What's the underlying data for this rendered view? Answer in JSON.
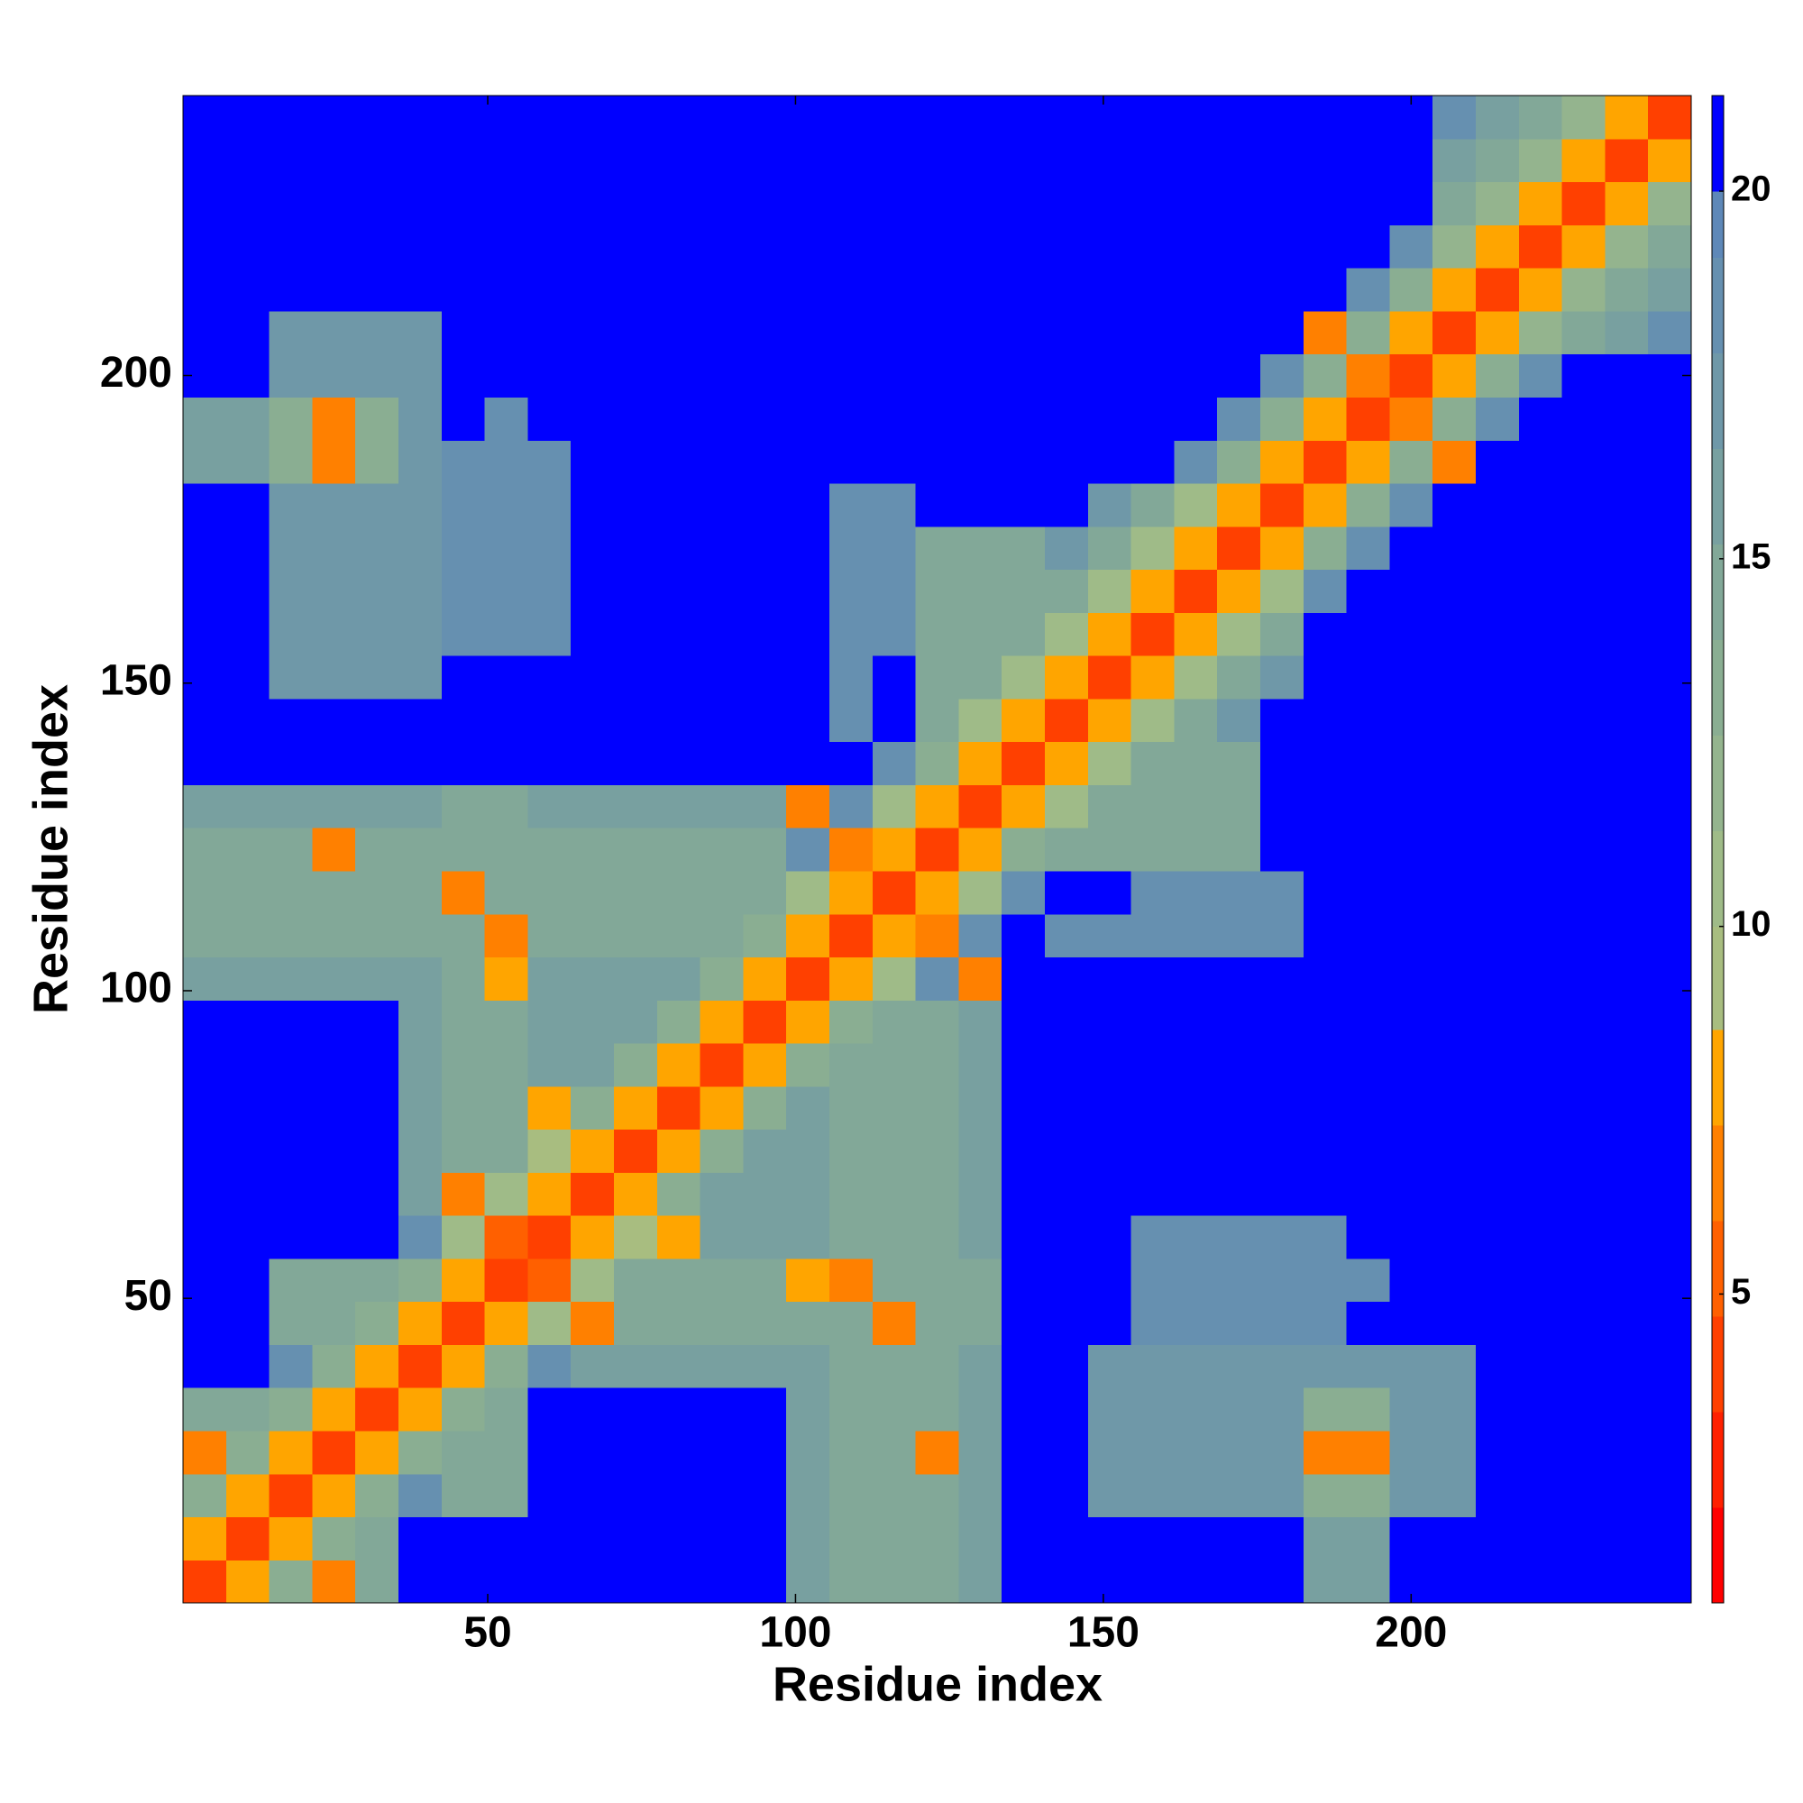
{
  "chart_data": {
    "type": "heatmap",
    "xlabel": "Residue index",
    "ylabel": "Residue index",
    "xlim": [
      0.5,
      245.5
    ],
    "ylim": [
      0.5,
      245.5
    ],
    "xticks": [
      50,
      100,
      150,
      200
    ],
    "yticks": [
      50,
      100,
      150,
      200
    ],
    "xbins": [
      0.5,
      7.5,
      14.5,
      21.5,
      28.5,
      35.5,
      42.5,
      49.5,
      56.5,
      63.5,
      70.5,
      77.5,
      84.5,
      91.5,
      98.5,
      105.5,
      112.5,
      119.5,
      126.5,
      133.5,
      140.5,
      147.5,
      154.5,
      161.5,
      168.5,
      175.5,
      182.5,
      189.5,
      196.5,
      203.5,
      210.5,
      217.5,
      224.5,
      231.5,
      238.5,
      245.5
    ],
    "ybins": [
      0.5,
      7.5,
      14.5,
      21.5,
      28.5,
      35.5,
      42.5,
      49.5,
      56.5,
      63.5,
      70.5,
      77.5,
      84.5,
      91.5,
      98.5,
      105.5,
      112.5,
      119.5,
      126.5,
      133.5,
      140.5,
      147.5,
      154.5,
      161.5,
      168.5,
      175.5,
      182.5,
      189.5,
      196.5,
      203.5,
      210.5,
      217.5,
      224.5,
      231.5,
      238.5,
      245.5
    ],
    "clim": [
      0.8,
      21.3
    ],
    "cticks": [
      5,
      10,
      15,
      20
    ],
    "color_levels": [
      0.8,
      2.1,
      3.4,
      4.7,
      6,
      7.3,
      8.6,
      10,
      11.3,
      12.6,
      13.9,
      15.2,
      16.5,
      17.8,
      19.1,
      20,
      21.3
    ],
    "colors": [
      "#ff0000",
      "#ff2000",
      "#ff4000",
      "#ff6000",
      "#ff8000",
      "#ffa500",
      "#a8bd80",
      "#9fbb88",
      "#94b48e",
      "#8aae92",
      "#82a898",
      "#78a0a0",
      "#6f98a8",
      "#6690b0",
      "#5e88b8",
      "#0000ff"
    ],
    "z": [
      [
        4,
        8,
        13,
        7,
        15,
        21,
        21,
        21,
        21,
        21,
        21,
        21,
        21,
        21,
        16,
        15,
        15,
        15,
        16,
        21,
        21,
        21,
        21,
        21,
        21,
        21,
        16,
        16,
        21,
        21,
        21,
        21,
        21,
        21,
        21
      ],
      [
        8,
        4,
        8,
        13,
        15,
        21,
        21,
        21,
        21,
        21,
        21,
        21,
        21,
        21,
        16,
        15,
        15,
        15,
        16,
        21,
        21,
        21,
        21,
        21,
        21,
        21,
        16,
        16,
        21,
        21,
        21,
        21,
        21,
        21,
        21
      ],
      [
        13,
        8,
        4,
        8,
        13,
        18,
        15,
        15,
        21,
        21,
        21,
        21,
        21,
        21,
        16,
        15,
        15,
        15,
        16,
        21,
        21,
        17,
        17,
        17,
        17,
        17,
        13,
        13,
        17,
        17,
        21,
        21,
        21,
        21,
        21
      ],
      [
        7,
        13,
        8,
        4,
        8,
        13,
        15,
        15,
        21,
        21,
        21,
        21,
        21,
        21,
        16,
        15,
        15,
        6,
        16,
        21,
        21,
        17,
        17,
        17,
        17,
        17,
        6,
        7,
        17,
        17,
        21,
        21,
        21,
        21,
        21
      ],
      [
        15,
        15,
        13,
        8,
        4,
        8,
        13,
        15,
        21,
        21,
        21,
        21,
        21,
        21,
        16,
        15,
        15,
        15,
        16,
        21,
        21,
        17,
        17,
        17,
        17,
        17,
        13,
        13,
        17,
        17,
        21,
        21,
        21,
        21,
        21
      ],
      [
        21,
        21,
        18,
        13,
        8,
        4,
        8,
        13,
        18,
        16,
        16,
        16,
        16,
        16,
        16,
        15,
        15,
        15,
        16,
        21,
        21,
        17,
        17,
        17,
        17,
        17,
        17,
        17,
        17,
        17,
        21,
        21,
        21,
        21,
        21
      ],
      [
        21,
        21,
        15,
        15,
        13,
        8,
        4,
        8,
        10,
        6,
        15,
        15,
        15,
        15,
        14,
        14,
        7,
        14,
        14,
        21,
        21,
        21,
        19,
        19,
        19,
        19,
        19,
        21,
        21,
        21,
        21,
        21,
        21,
        21,
        21
      ],
      [
        21,
        21,
        15,
        15,
        15,
        13,
        8,
        4,
        5,
        10,
        15,
        15,
        15,
        15,
        8,
        6,
        14,
        14,
        14,
        21,
        21,
        21,
        19,
        19,
        19,
        19,
        19,
        19,
        21,
        21,
        21,
        21,
        21,
        21,
        21
      ],
      [
        21,
        21,
        21,
        21,
        21,
        18,
        10,
        5,
        4,
        8,
        9,
        8,
        16,
        16,
        16,
        15,
        15,
        15,
        16,
        21,
        21,
        21,
        19,
        19,
        19,
        19,
        19,
        21,
        21,
        21,
        21,
        21,
        21,
        21,
        21
      ],
      [
        21,
        21,
        21,
        21,
        21,
        16,
        6,
        10,
        8,
        4,
        8,
        13,
        16,
        16,
        16,
        15,
        15,
        15,
        16,
        21,
        21,
        21,
        21,
        21,
        21,
        21,
        21,
        21,
        21,
        21,
        21,
        21,
        21,
        21,
        21
      ],
      [
        21,
        21,
        21,
        21,
        21,
        16,
        15,
        15,
        9,
        8,
        4,
        8,
        13,
        16,
        16,
        15,
        15,
        15,
        16,
        21,
        21,
        21,
        21,
        21,
        21,
        21,
        21,
        21,
        21,
        21,
        21,
        21,
        21,
        21,
        21
      ],
      [
        21,
        21,
        21,
        21,
        21,
        16,
        15,
        15,
        8,
        13,
        8,
        4,
        8,
        13,
        16,
        15,
        15,
        15,
        16,
        21,
        21,
        21,
        21,
        21,
        21,
        21,
        21,
        21,
        21,
        21,
        21,
        21,
        21,
        21,
        21
      ],
      [
        21,
        21,
        21,
        21,
        21,
        16,
        15,
        15,
        16,
        16,
        13,
        8,
        4,
        8,
        13,
        15,
        15,
        15,
        16,
        21,
        21,
        21,
        21,
        21,
        21,
        21,
        21,
        21,
        21,
        21,
        21,
        21,
        21,
        21,
        21
      ],
      [
        21,
        21,
        21,
        21,
        21,
        16,
        15,
        15,
        16,
        16,
        16,
        13,
        8,
        4,
        8,
        13,
        15,
        15,
        16,
        21,
        21,
        21,
        21,
        21,
        21,
        21,
        21,
        21,
        21,
        21,
        21,
        21,
        21,
        21,
        21
      ],
      [
        16,
        16,
        16,
        16,
        16,
        16,
        14,
        8,
        16,
        16,
        16,
        16,
        13,
        8,
        4,
        8,
        10,
        18,
        6,
        21,
        21,
        21,
        21,
        21,
        21,
        21,
        21,
        21,
        21,
        21,
        21,
        21,
        21,
        21,
        21
      ],
      [
        15,
        15,
        15,
        15,
        15,
        15,
        14,
        6,
        15,
        15,
        15,
        15,
        15,
        13,
        8,
        4,
        8,
        6,
        18,
        21,
        19,
        19,
        19,
        19,
        19,
        19,
        21,
        21,
        21,
        21,
        21,
        21,
        21,
        21,
        21
      ],
      [
        15,
        15,
        15,
        15,
        15,
        15,
        7,
        14,
        15,
        15,
        15,
        15,
        15,
        15,
        10,
        8,
        4,
        8,
        10,
        18,
        21,
        21,
        19,
        19,
        19,
        19,
        21,
        21,
        21,
        21,
        21,
        21,
        21,
        21,
        21
      ],
      [
        15,
        15,
        15,
        6,
        15,
        15,
        14,
        14,
        15,
        15,
        15,
        15,
        15,
        15,
        18,
        6,
        8,
        4,
        8,
        13,
        15,
        15,
        15,
        15,
        15,
        21,
        21,
        21,
        21,
        21,
        21,
        21,
        21,
        21,
        21
      ],
      [
        16,
        16,
        16,
        16,
        16,
        16,
        14,
        14,
        16,
        16,
        16,
        16,
        16,
        16,
        6,
        18,
        10,
        8,
        4,
        8,
        11,
        14,
        15,
        15,
        15,
        21,
        21,
        21,
        21,
        21,
        21,
        21,
        21,
        21,
        21
      ],
      [
        21,
        21,
        21,
        21,
        21,
        21,
        21,
        21,
        21,
        21,
        21,
        21,
        21,
        21,
        21,
        21,
        18,
        13,
        8,
        4,
        8,
        11,
        14,
        15,
        15,
        21,
        21,
        21,
        21,
        21,
        21,
        21,
        21,
        21,
        21
      ],
      [
        21,
        21,
        21,
        21,
        21,
        21,
        21,
        21,
        21,
        21,
        21,
        21,
        21,
        21,
        21,
        19,
        21,
        15,
        11,
        8,
        4,
        8,
        11,
        14,
        17,
        21,
        21,
        21,
        21,
        21,
        21,
        21,
        21,
        21,
        21
      ],
      [
        21,
        21,
        17,
        17,
        17,
        17,
        21,
        21,
        21,
        21,
        21,
        21,
        21,
        21,
        21,
        19,
        21,
        15,
        14,
        11,
        8,
        4,
        8,
        11,
        14,
        17,
        21,
        21,
        21,
        21,
        21,
        21,
        21,
        21,
        21
      ],
      [
        21,
        21,
        17,
        17,
        17,
        17,
        19,
        19,
        19,
        21,
        21,
        21,
        21,
        21,
        21,
        19,
        19,
        15,
        15,
        14,
        11,
        8,
        4,
        8,
        11,
        14,
        21,
        21,
        21,
        21,
        21,
        21,
        21,
        21,
        21
      ],
      [
        21,
        21,
        17,
        17,
        17,
        17,
        19,
        19,
        19,
        21,
        21,
        21,
        21,
        21,
        21,
        19,
        19,
        15,
        15,
        15,
        14,
        11,
        8,
        4,
        8,
        11,
        18,
        21,
        21,
        21,
        21,
        21,
        21,
        21,
        21
      ],
      [
        21,
        21,
        17,
        17,
        17,
        17,
        19,
        19,
        19,
        21,
        21,
        21,
        21,
        21,
        21,
        19,
        19,
        15,
        15,
        15,
        17,
        14,
        11,
        8,
        4,
        8,
        13,
        18,
        21,
        21,
        21,
        21,
        21,
        21,
        21
      ],
      [
        21,
        21,
        17,
        17,
        17,
        17,
        19,
        19,
        19,
        21,
        21,
        21,
        21,
        21,
        21,
        19,
        19,
        21,
        21,
        21,
        21,
        17,
        14,
        11,
        8,
        4,
        8,
        13,
        18,
        21,
        21,
        21,
        21,
        21,
        21
      ],
      [
        16,
        16,
        13,
        6,
        13,
        17,
        19,
        19,
        19,
        21,
        21,
        21,
        21,
        21,
        21,
        21,
        21,
        21,
        21,
        21,
        21,
        21,
        21,
        18,
        13,
        8,
        4,
        8,
        13,
        7,
        21,
        21,
        21,
        21,
        21
      ],
      [
        16,
        16,
        13,
        7,
        13,
        17,
        21,
        19,
        21,
        21,
        21,
        21,
        21,
        21,
        21,
        21,
        21,
        21,
        21,
        21,
        21,
        21,
        21,
        21,
        18,
        13,
        8,
        4,
        6,
        13,
        18,
        21,
        21,
        21,
        21
      ],
      [
        21,
        21,
        17,
        17,
        17,
        17,
        21,
        21,
        21,
        21,
        21,
        21,
        21,
        21,
        21,
        21,
        21,
        21,
        21,
        21,
        21,
        21,
        21,
        21,
        21,
        18,
        13,
        6,
        4,
        8,
        13,
        18,
        21,
        21,
        21
      ],
      [
        21,
        21,
        17,
        17,
        17,
        17,
        21,
        21,
        21,
        21,
        21,
        21,
        21,
        21,
        21,
        21,
        21,
        21,
        21,
        21,
        21,
        21,
        21,
        21,
        21,
        21,
        7,
        13,
        8,
        4,
        8,
        12,
        14,
        16,
        18
      ],
      [
        21,
        21,
        21,
        21,
        21,
        21,
        21,
        21,
        21,
        21,
        21,
        21,
        21,
        21,
        21,
        21,
        21,
        21,
        21,
        21,
        21,
        21,
        21,
        21,
        21,
        21,
        21,
        18,
        13,
        8,
        4,
        8,
        12,
        14,
        16
      ],
      [
        21,
        21,
        21,
        21,
        21,
        21,
        21,
        21,
        21,
        21,
        21,
        21,
        21,
        21,
        21,
        21,
        21,
        21,
        21,
        21,
        21,
        21,
        21,
        21,
        21,
        21,
        21,
        21,
        18,
        12,
        8,
        4,
        8,
        12,
        14
      ],
      [
        21,
        21,
        21,
        21,
        21,
        21,
        21,
        21,
        21,
        21,
        21,
        21,
        21,
        21,
        21,
        21,
        21,
        21,
        21,
        21,
        21,
        21,
        21,
        21,
        21,
        21,
        21,
        21,
        21,
        14,
        12,
        8,
        4,
        8,
        12
      ],
      [
        21,
        21,
        21,
        21,
        21,
        21,
        21,
        21,
        21,
        21,
        21,
        21,
        21,
        21,
        21,
        21,
        21,
        21,
        21,
        21,
        21,
        21,
        21,
        21,
        21,
        21,
        21,
        21,
        21,
        16,
        14,
        12,
        8,
        4,
        8
      ],
      [
        21,
        21,
        21,
        21,
        21,
        21,
        21,
        21,
        21,
        21,
        21,
        21,
        21,
        21,
        21,
        21,
        21,
        21,
        21,
        21,
        21,
        21,
        21,
        21,
        21,
        21,
        21,
        21,
        21,
        18,
        16,
        14,
        12,
        8,
        4
      ]
    ]
  }
}
